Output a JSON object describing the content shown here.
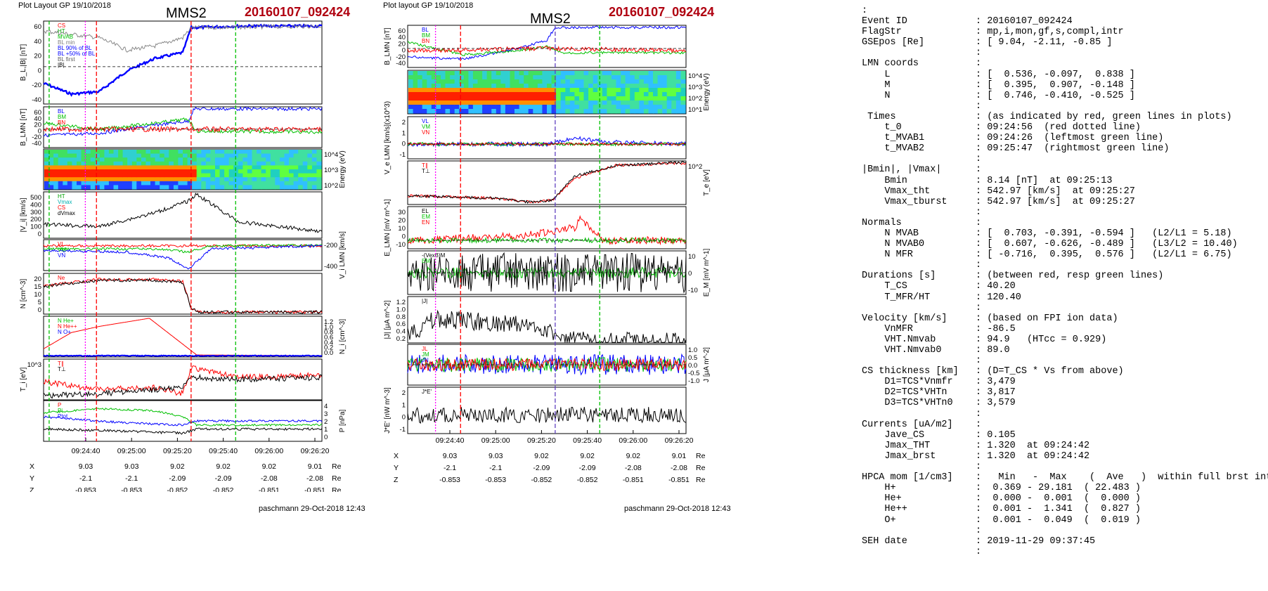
{
  "left": {
    "header": "Plot Layout GP 19/10/2018",
    "spacecraft": "MMS2",
    "event": "20160107_092424",
    "footer": "paschmann 29-Oct-2018 12:43",
    "time_ticks": [
      "09:24:40",
      "09:25:00",
      "09:25:20",
      "09:25:40",
      "09:26:00",
      "09:26:20"
    ],
    "orbit": {
      "x_label": "X",
      "y_label": "Y",
      "z_label": "Z",
      "unit": "Re",
      "x": [
        "9.03",
        "9.03",
        "9.02",
        "9.02",
        "9.02",
        "9.01"
      ],
      "y": [
        "-2.1",
        "-2.1",
        "-2.09",
        "-2.09",
        "-2.08",
        "-2.08"
      ],
      "z": [
        "-0.853",
        "-0.853",
        "-0.852",
        "-0.852",
        "-0.851",
        "-0.851"
      ]
    },
    "panels": [
      {
        "ylabel": "B_L,|B| [nT]",
        "legend": [
          "CS",
          "HT",
          "MVAB",
          "BL min",
          "BL 90% of BL",
          "BL +50% of BL",
          "BL first",
          "|B|"
        ],
        "ticks": [
          "60",
          "40",
          "20",
          "0",
          "-20",
          "-40"
        ]
      },
      {
        "ylabel": "B_LMN [nT]",
        "legend": [
          "BL",
          "BM",
          "BN"
        ],
        "ticks": [
          "60",
          "40",
          "20",
          "0",
          "-20",
          "-40"
        ]
      },
      {
        "ylabel": "Energy (eV)",
        "ticks": [
          "10^4",
          "10^3",
          "10^2"
        ]
      },
      {
        "ylabel": "|V_i| [km/s]",
        "legend": [
          "HT",
          "Vmax",
          "CS",
          "dVmax"
        ],
        "ticks": [
          "500",
          "400",
          "300",
          "200",
          "100",
          "0"
        ]
      },
      {
        "ylabel": "V_i LMN [km/s]",
        "legend": [
          "VL",
          "VM",
          "VN"
        ],
        "ticks": [
          "-200",
          "-400"
        ]
      },
      {
        "ylabel": "N [cm^-3]",
        "legend": [
          "Ne"
        ],
        "ticks": [
          "20",
          "15",
          "10",
          "5",
          "0"
        ]
      },
      {
        "ylabel": "N_i [cm^-3]",
        "legend": [
          "N He+",
          "N He++",
          "N O+"
        ],
        "ticks": [
          "1.2",
          "1.0",
          "0.8",
          "0.6",
          "0.4",
          "0.2",
          "0.0"
        ]
      },
      {
        "ylabel": "T_i [eV]",
        "legend": [
          "T∥",
          "T⊥"
        ],
        "ticks": [
          "10^3"
        ]
      },
      {
        "ylabel": "P [nPa]",
        "legend": [
          "P",
          "Pi",
          "Ptot"
        ],
        "ticks": [
          "4",
          "3",
          "2",
          "1",
          "0"
        ]
      }
    ]
  },
  "middle": {
    "header": "Plot layout GP 19/10/2018",
    "spacecraft": "MMS2",
    "event": "20160107_092424",
    "footer": "paschmann 29-Oct-2018 12:43",
    "time_ticks": [
      "09:24:40",
      "09:25:00",
      "09:25:20",
      "09:25:40",
      "09:26:00",
      "09:26:20"
    ],
    "orbit": {
      "x_label": "X",
      "y_label": "Y",
      "z_label": "Z",
      "unit": "Re",
      "x": [
        "9.03",
        "9.03",
        "9.02",
        "9.02",
        "9.02",
        "9.01"
      ],
      "y": [
        "-2.1",
        "-2.1",
        "-2.09",
        "-2.09",
        "-2.08",
        "-2.08"
      ],
      "z": [
        "-0.853",
        "-0.853",
        "-0.852",
        "-0.852",
        "-0.851",
        "-0.851"
      ]
    },
    "panels": [
      {
        "ylabel": "B_LMN [nT]",
        "legend": [
          "BL",
          "BM",
          "BN"
        ],
        "ticks": [
          "60",
          "40",
          "20",
          "0",
          "-20",
          "-40"
        ]
      },
      {
        "ylabel": "Energy (eV)",
        "ticks": [
          "10^4",
          "10^3",
          "10^2",
          "10^1"
        ]
      },
      {
        "ylabel": "V_e LMN [km/s](x10^3)",
        "legend": [
          "VL",
          "VM",
          "VN"
        ],
        "ticks": [
          "2",
          "1",
          "0",
          "-1"
        ]
      },
      {
        "ylabel": "T_e [eV]",
        "legend": [
          "T∥",
          "T⊥"
        ],
        "ticks": [
          "10^2"
        ]
      },
      {
        "ylabel": "E_LMN [mV m^-1]",
        "legend": [
          "EL",
          "EM",
          "EN"
        ],
        "ticks": [
          "30",
          "20",
          "10",
          "0",
          "-10"
        ]
      },
      {
        "ylabel": "E_M [mV m^-1]",
        "legend": [
          "-(VexB)M",
          "EM"
        ],
        "ticks": [
          "10",
          "0",
          "-10"
        ]
      },
      {
        "ylabel": "|J| [μA m^-2]",
        "legend": [
          "|J|"
        ],
        "ticks": [
          "1.2",
          "1.0",
          "0.8",
          "0.6",
          "0.4",
          "0.2"
        ]
      },
      {
        "ylabel": "J [μA m^-2]",
        "legend": [
          "JL",
          "JM",
          "JN"
        ],
        "ticks": [
          "1.0",
          "0.5",
          "0.0",
          "-0.5",
          "-1.0"
        ]
      },
      {
        "ylabel": "J*E' [nW m^-3]",
        "legend": [
          "J*E'"
        ],
        "ticks": [
          "2",
          "1",
          "0",
          "-1"
        ]
      }
    ]
  },
  "info_lines": [
    ":",
    "Event ID            : 20160107_092424",
    "FlagStr             : mp,i,mon,gf,s,compl,intr",
    "GSEpos [Re]         : [ 9.04, -2.11, -0.85 ]",
    "                    :",
    "LMN coords          :",
    "    L               : [  0.536, -0.097,  0.838 ]",
    "    M               : [  0.395,  0.907, -0.148 ]",
    "    N               : [  0.746, -0.410, -0.525 ]",
    "                    :",
    " Times              : (as indicated by red, green lines in plots)",
    "    t_0             : 09:24:56  (red dotted line)",
    "    t_MVAB1         : 09:24:26  (leftmost green line)",
    "    t_MVAB2         : 09:25:47  (rightmost green line)",
    "                    :",
    "|Bmin|, |Vmax|      :",
    "    Bmin            : 8.14 [nT]  at 09:25:13",
    "    Vmax_tht        : 542.97 [km/s]  at 09:25:27",
    "    Vmax_tburst     : 542.97 [km/s]  at 09:25:27",
    "                    :",
    "Normals             :",
    "    N MVAB          : [  0.703, -0.391, -0.594 ]   (L2/L1 = 5.18)",
    "    N MVAB0         : [  0.607, -0.626, -0.489 ]   (L3/L2 = 10.40)",
    "    N MFR           : [ -0.716,  0.395,  0.576 ]   (L2/L1 = 6.75)",
    "                    :",
    "Durations [s]       : (between red, resp green lines)",
    "    T_CS            : 40.20",
    "    T_MFR/HT        : 120.40",
    "                    :",
    "Velocity [km/s]     : (based on FPI ion data)",
    "    VnMFR           : -86.5",
    "    VHT.Nmvab       : 94.9   (HTcc = 0.929)",
    "    VHT.Nmvab0      : 89.0",
    "                    :",
    "CS thickness [km]   : (D=T_CS * Vs from above)",
    "    D1=TCS*Vnmfr    : 3,479",
    "    D2=TCS*VHTn     : 3,817",
    "    D3=TCS*VHTn0    : 3,579",
    "                    :",
    "Currents [uA/m2]    :",
    "    Jave_CS         : 0.105",
    "    Jmax_THT        : 1.320  at 09:24:42",
    "    Jmax_brst       : 1.320  at 09:24:42",
    "                    :",
    "HPCA mom [1/cm3]    :   Min   -  Max    (  Ave   )  within full brst int",
    "    H+              :  0.369 - 29.181  ( 22.483 )",
    "    He+             :  0.000 -  0.001  (  0.000 )",
    "    He++            :  0.001 -  1.341  (  0.827 )",
    "    O+              :  0.001 -  0.049  (  0.019 )",
    "                    :",
    "SEH date            : 2019-11-29 09:37:45",
    "                    :"
  ],
  "chart_data": [
    {
      "type": "line",
      "title": "MMS2 20160107_092424",
      "x_ticks": [
        "09:24:40",
        "09:25:00",
        "09:25:20",
        "09:25:40",
        "09:26:00",
        "09:26:20"
      ],
      "series": [
        {
          "name": "BL",
          "x": [
            "09:24:25",
            "09:24:40",
            "09:24:50",
            "09:25:00",
            "09:25:10",
            "09:25:20",
            "09:25:27",
            "09:25:40",
            "09:26:00",
            "09:26:20"
          ],
          "values": [
            -20,
            -40,
            -30,
            5,
            25,
            30,
            62,
            65,
            66,
            65
          ]
        },
        {
          "name": "|V_i|",
          "x": [
            "09:24:25",
            "09:24:40",
            "09:25:00",
            "09:25:20",
            "09:25:27",
            "09:25:40",
            "09:26:00",
            "09:26:20"
          ],
          "values": [
            200,
            150,
            350,
            400,
            540,
            150,
            60,
            50
          ]
        },
        {
          "name": "Ne",
          "x": [
            "09:24:25",
            "09:24:40",
            "09:25:00",
            "09:25:20",
            "09:25:27",
            "09:25:30",
            "09:26:20"
          ],
          "values": [
            17,
            20,
            20,
            20,
            10,
            1,
            1
          ]
        }
      ]
    },
    {
      "type": "line",
      "title": "MMS2 20160107_092424",
      "x_ticks": [
        "09:24:40",
        "09:25:00",
        "09:25:20",
        "09:25:40",
        "09:26:00",
        "09:26:20"
      ],
      "series": [
        {
          "name": "|J|",
          "x": [
            "09:24:25",
            "09:24:42",
            "09:25:00",
            "09:25:20",
            "09:25:40",
            "09:26:20"
          ],
          "values": [
            0.2,
            1.32,
            0.4,
            0.3,
            0.1,
            0.05
          ]
        }
      ]
    }
  ],
  "colors": {
    "event": "#b00010",
    "blue": "#0000ff",
    "red": "#ff0000",
    "green": "#00c000",
    "magenta": "#ff00ff"
  }
}
